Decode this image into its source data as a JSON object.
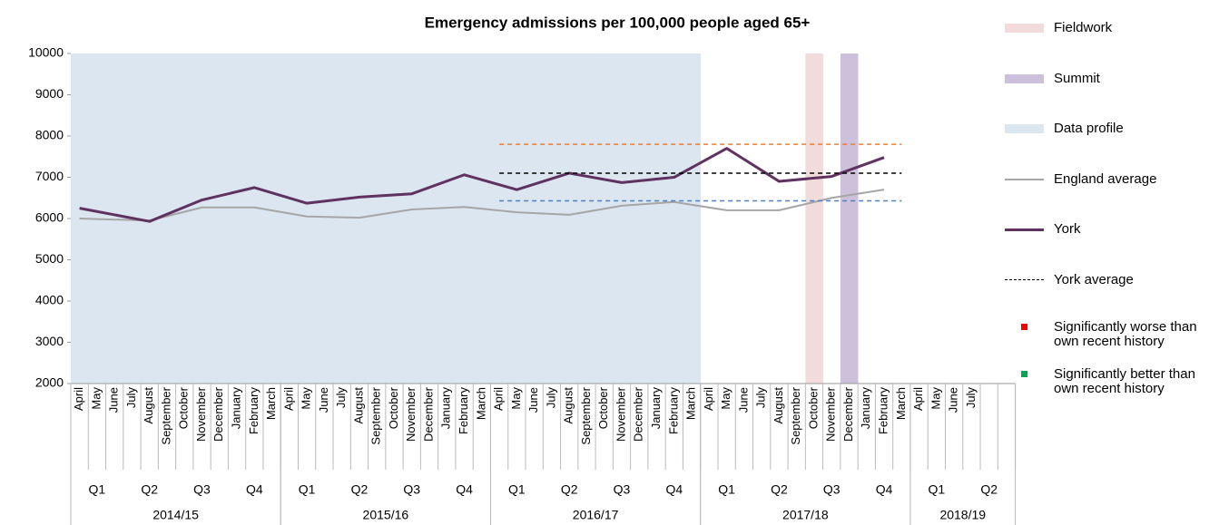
{
  "chart_data": {
    "type": "line",
    "title": "Emergency admissions per 100,000 people aged 65+",
    "categories": [
      "April",
      "May",
      "June",
      "July",
      "August",
      "September",
      "October",
      "November",
      "December",
      "January",
      "February",
      "March",
      "April",
      "May",
      "June",
      "July",
      "August",
      "September",
      "October",
      "November",
      "December",
      "January",
      "February",
      "March",
      "April",
      "May",
      "June",
      "July",
      "August",
      "September",
      "October",
      "November",
      "December",
      "January",
      "February",
      "March",
      "April",
      "May",
      "June",
      "July",
      "August",
      "September",
      "October",
      "November",
      "December",
      "January",
      "February",
      "March",
      "April",
      "May",
      "June",
      "July",
      null,
      null
    ],
    "category_groups": [
      {
        "label": "2014/15",
        "quarters": [
          "Q1",
          "Q2",
          "Q3",
          "Q4"
        ]
      },
      {
        "label": "2015/16",
        "quarters": [
          "Q1",
          "Q2",
          "Q3",
          "Q4"
        ]
      },
      {
        "label": "2016/17",
        "quarters": [
          "Q1",
          "Q2",
          "Q3",
          "Q4"
        ]
      },
      {
        "label": "2017/18",
        "quarters": [
          "Q1",
          "Q2",
          "Q3",
          "Q4"
        ]
      },
      {
        "label": "2018/19",
        "quarters": [
          "Q1",
          "Q2"
        ]
      }
    ],
    "ylim": [
      2000,
      10000
    ],
    "yticks": [
      2000,
      3000,
      4000,
      5000,
      6000,
      7000,
      8000,
      9000,
      10000
    ],
    "grid": false,
    "span_gaps": true,
    "series": [
      {
        "name": "Fieldwork",
        "type": "bar",
        "color": "#f2dcdb",
        "values": [
          null,
          null,
          null,
          null,
          null,
          null,
          null,
          null,
          null,
          null,
          null,
          null,
          null,
          null,
          null,
          null,
          null,
          null,
          null,
          null,
          null,
          null,
          null,
          null,
          null,
          null,
          null,
          null,
          null,
          null,
          null,
          null,
          null,
          null,
          null,
          null,
          null,
          null,
          null,
          null,
          null,
          null,
          10000,
          null,
          null,
          null,
          null,
          null,
          null,
          null,
          null,
          null,
          null,
          null
        ]
      },
      {
        "name": "Summit",
        "type": "bar",
        "color": "#ccc0da",
        "values": [
          null,
          null,
          null,
          null,
          null,
          null,
          null,
          null,
          null,
          null,
          null,
          null,
          null,
          null,
          null,
          null,
          null,
          null,
          null,
          null,
          null,
          null,
          null,
          null,
          null,
          null,
          null,
          null,
          null,
          null,
          null,
          null,
          null,
          null,
          null,
          null,
          null,
          null,
          null,
          null,
          null,
          null,
          null,
          null,
          10000,
          null,
          null,
          null,
          null,
          null,
          null,
          null,
          null,
          null
        ]
      },
      {
        "name": "Data profile",
        "type": "bar",
        "color": "#dce6f1",
        "values": [
          10000,
          10000,
          10000,
          10000,
          10000,
          10000,
          10000,
          10000,
          10000,
          10000,
          10000,
          10000,
          10000,
          10000,
          10000,
          10000,
          10000,
          10000,
          10000,
          10000,
          10000,
          10000,
          10000,
          10000,
          10000,
          10000,
          10000,
          10000,
          10000,
          10000,
          10000,
          10000,
          10000,
          10000,
          10000,
          10000,
          null,
          null,
          null,
          null,
          null,
          null,
          null,
          null,
          null,
          null,
          null,
          null,
          null,
          null,
          null,
          null,
          null,
          null
        ]
      },
      {
        "name": "England average",
        "type": "line",
        "color": "#a6a6a6",
        "width": 2,
        "values": [
          6000,
          null,
          null,
          null,
          5950,
          null,
          null,
          6270,
          null,
          null,
          6270,
          null,
          null,
          6050,
          null,
          null,
          6020,
          null,
          null,
          6220,
          null,
          null,
          6280,
          null,
          null,
          6150,
          null,
          null,
          6090,
          null,
          null,
          6310,
          null,
          null,
          6400,
          null,
          null,
          6200,
          null,
          null,
          6200,
          null,
          null,
          6500,
          null,
          null,
          6700,
          null,
          null,
          null,
          null,
          null,
          null,
          null
        ]
      },
      {
        "name": "York",
        "type": "line",
        "color": "#60325f",
        "width": 3,
        "values": [
          6250,
          null,
          null,
          null,
          5930,
          null,
          null,
          6450,
          null,
          null,
          6750,
          null,
          null,
          6370,
          null,
          null,
          6520,
          null,
          null,
          6600,
          null,
          null,
          7060,
          null,
          null,
          6700,
          null,
          null,
          7100,
          null,
          null,
          6870,
          null,
          null,
          7000,
          null,
          null,
          7700,
          null,
          null,
          6900,
          null,
          null,
          7020,
          null,
          null,
          7480,
          null,
          null,
          null,
          null,
          null,
          null,
          null
        ]
      },
      {
        "name": "York average",
        "type": "line",
        "color": "#000000",
        "width": 1.5,
        "dash": true,
        "values": [
          null,
          null,
          null,
          null,
          null,
          null,
          null,
          null,
          null,
          null,
          null,
          null,
          null,
          null,
          null,
          null,
          null,
          null,
          null,
          null,
          null,
          null,
          null,
          null,
          7100,
          7100,
          7100,
          7100,
          7100,
          7100,
          7100,
          7100,
          7100,
          7100,
          7100,
          7100,
          7100,
          7100,
          7100,
          7100,
          7100,
          7100,
          7100,
          7100,
          7100,
          7100,
          7100,
          7100,
          null,
          null,
          null,
          null,
          null,
          null
        ]
      },
      {
        "name": "Significantly worse than own recent history",
        "type": "marker",
        "color": "#ff0000"
      },
      {
        "name": "Significantly better than own recent history",
        "type": "marker",
        "color": "#00a651"
      },
      {
        "type": "line",
        "color": "#ed7d31",
        "width": 1.5,
        "dash": true,
        "values": [
          null,
          null,
          null,
          null,
          null,
          null,
          null,
          null,
          null,
          null,
          null,
          null,
          null,
          null,
          null,
          null,
          null,
          null,
          null,
          null,
          null,
          null,
          null,
          null,
          7800,
          7800,
          7800,
          7800,
          7800,
          7800,
          7800,
          7800,
          7800,
          7800,
          7800,
          7800,
          7800,
          7800,
          7800,
          7800,
          7800,
          7800,
          7800,
          7800,
          7800,
          7800,
          7800,
          7800,
          null,
          null,
          null,
          null,
          null,
          null
        ]
      },
      {
        "type": "line",
        "color": "#4f81bd",
        "width": 1.5,
        "dash": true,
        "values": [
          null,
          null,
          null,
          null,
          null,
          null,
          null,
          null,
          null,
          null,
          null,
          null,
          null,
          null,
          null,
          null,
          null,
          null,
          null,
          null,
          null,
          null,
          null,
          null,
          6430,
          6430,
          6430,
          6430,
          6430,
          6430,
          6430,
          6430,
          6430,
          6430,
          6430,
          6430,
          6430,
          6430,
          6430,
          6430,
          6430,
          6430,
          6430,
          6430,
          6430,
          6430,
          6430,
          6430,
          null,
          null,
          null,
          null,
          null,
          null
        ]
      }
    ]
  }
}
